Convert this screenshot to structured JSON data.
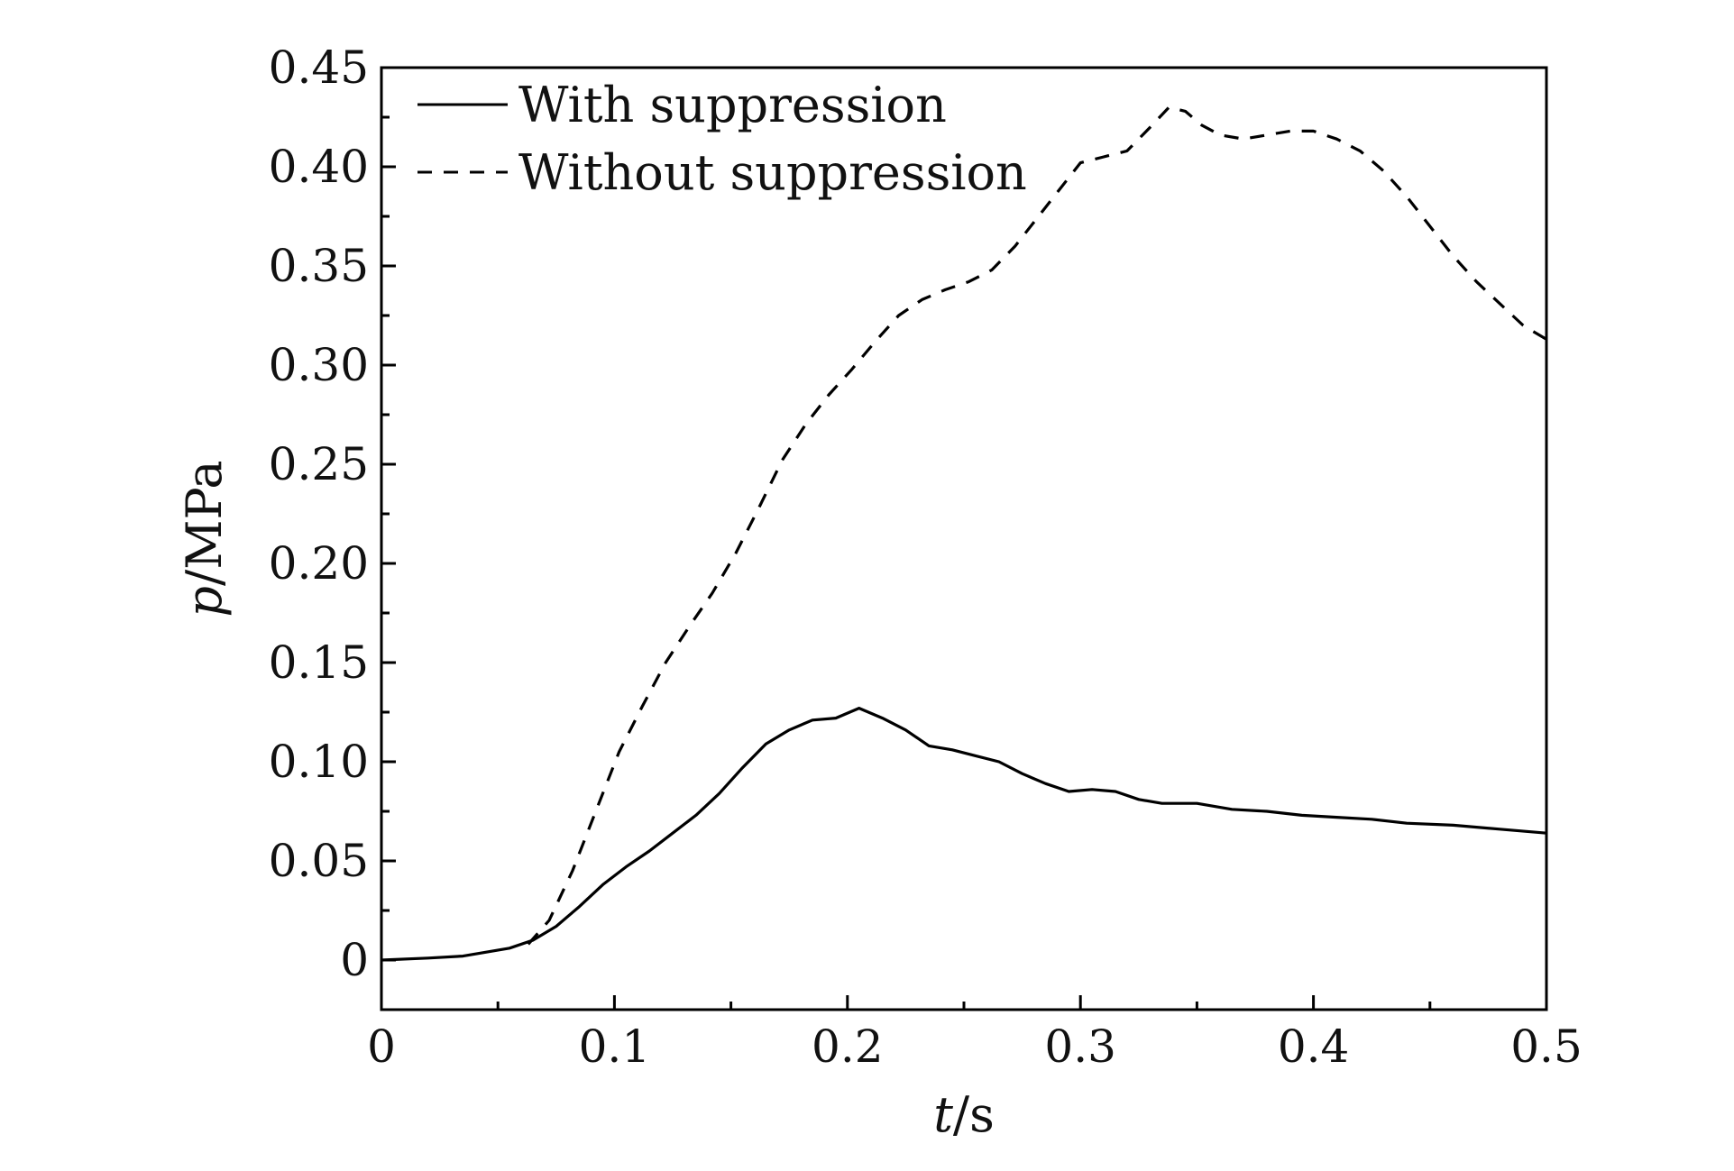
{
  "chart_data": {
    "type": "line",
    "title": "",
    "xlabel": "t/s",
    "ylabel": "p/MPa",
    "xlabel_var": "t",
    "xlabel_unit": "/s",
    "ylabel_var": "p",
    "ylabel_unit": "/MPa",
    "xlim": [
      0,
      0.5
    ],
    "ylim": [
      -0.025,
      0.45
    ],
    "x_ticks": [
      0,
      0.1,
      0.2,
      0.3,
      0.4,
      0.5
    ],
    "x_tick_labels": [
      "0",
      "0.1",
      "0.2",
      "0.3",
      "0.4",
      "0.5"
    ],
    "y_ticks": [
      0,
      0.05,
      0.1,
      0.15,
      0.2,
      0.25,
      0.3,
      0.35,
      0.4,
      0.45
    ],
    "y_tick_labels": [
      "0",
      "0.05",
      "0.10",
      "0.15",
      "0.20",
      "0.25",
      "0.30",
      "0.35",
      "0.40",
      "0.45"
    ],
    "grid": false,
    "legend_position": "top-left",
    "series": [
      {
        "name": "With suppression",
        "style": "solid",
        "color": "#000000",
        "x": [
          0,
          0.02,
          0.035,
          0.045,
          0.055,
          0.065,
          0.075,
          0.085,
          0.095,
          0.105,
          0.115,
          0.125,
          0.135,
          0.145,
          0.155,
          0.165,
          0.175,
          0.185,
          0.195,
          0.205,
          0.215,
          0.225,
          0.235,
          0.245,
          0.255,
          0.265,
          0.275,
          0.285,
          0.295,
          0.305,
          0.315,
          0.325,
          0.335,
          0.35,
          0.365,
          0.38,
          0.395,
          0.41,
          0.425,
          0.44,
          0.46,
          0.48,
          0.5
        ],
        "y": [
          0.0,
          0.001,
          0.002,
          0.004,
          0.006,
          0.01,
          0.017,
          0.027,
          0.038,
          0.047,
          0.055,
          0.064,
          0.073,
          0.084,
          0.097,
          0.109,
          0.116,
          0.121,
          0.122,
          0.127,
          0.122,
          0.116,
          0.108,
          0.106,
          0.103,
          0.1,
          0.094,
          0.089,
          0.085,
          0.086,
          0.085,
          0.081,
          0.079,
          0.079,
          0.076,
          0.075,
          0.073,
          0.072,
          0.071,
          0.069,
          0.068,
          0.066,
          0.064
        ]
      },
      {
        "name": "Without suppression",
        "style": "dashed",
        "color": "#000000",
        "x": [
          0.063,
          0.072,
          0.082,
          0.092,
          0.102,
          0.112,
          0.122,
          0.132,
          0.142,
          0.152,
          0.162,
          0.172,
          0.182,
          0.192,
          0.202,
          0.212,
          0.222,
          0.232,
          0.242,
          0.252,
          0.262,
          0.272,
          0.282,
          0.292,
          0.3,
          0.31,
          0.32,
          0.33,
          0.338,
          0.345,
          0.352,
          0.36,
          0.37,
          0.38,
          0.39,
          0.4,
          0.41,
          0.42,
          0.43,
          0.44,
          0.45,
          0.46,
          0.47,
          0.48,
          0.49,
          0.5
        ],
        "y": [
          0.008,
          0.02,
          0.045,
          0.075,
          0.105,
          0.128,
          0.15,
          0.168,
          0.185,
          0.205,
          0.228,
          0.252,
          0.27,
          0.285,
          0.298,
          0.312,
          0.325,
          0.333,
          0.338,
          0.342,
          0.348,
          0.36,
          0.375,
          0.39,
          0.402,
          0.405,
          0.408,
          0.42,
          0.43,
          0.428,
          0.421,
          0.416,
          0.414,
          0.416,
          0.418,
          0.418,
          0.414,
          0.408,
          0.398,
          0.385,
          0.37,
          0.355,
          0.342,
          0.331,
          0.32,
          0.313
        ]
      }
    ]
  }
}
